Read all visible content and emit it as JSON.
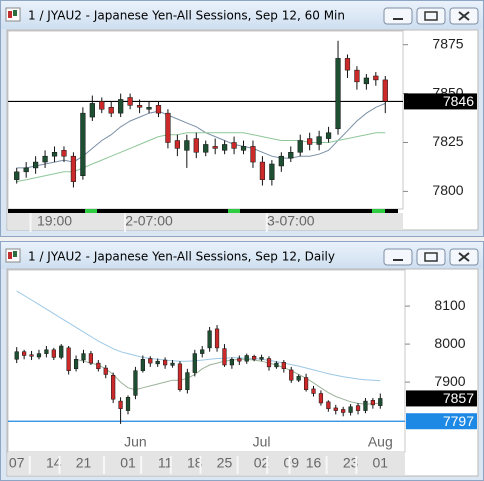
{
  "chart_data": [
    {
      "type": "candlestick",
      "title": "1 / JYAU2 - Japanese Yen-All Sessions, Sep 12, 60 Min",
      "categories": [
        null,
        null,
        null,
        null,
        "19:00",
        null,
        null,
        null,
        null,
        null,
        null,
        null,
        null,
        null,
        "2-07:00",
        null,
        null,
        null,
        null,
        null,
        null,
        null,
        null,
        null,
        null,
        null,
        null,
        null,
        null,
        "3-07:00",
        null,
        null,
        null,
        null,
        null,
        null,
        null,
        null,
        null,
        null
      ],
      "open": [
        7806,
        7810,
        7812,
        7815,
        7818,
        7821,
        7818,
        7808,
        7838,
        7846,
        7843,
        7840,
        7848,
        7844,
        7842,
        7844,
        7840,
        7826,
        7821,
        7827,
        7820,
        7823,
        7821,
        7825,
        7821,
        7823,
        7815,
        7806,
        7813,
        7817,
        7820,
        7827,
        7824,
        7827,
        7832,
        7868,
        7862,
        7855,
        7859,
        7857
      ],
      "high": [
        7812,
        7815,
        7818,
        7821,
        7823,
        7823,
        7820,
        7843,
        7849,
        7848,
        7846,
        7850,
        7850,
        7847,
        7846,
        7846,
        7842,
        7829,
        7829,
        7830,
        7826,
        7827,
        7826,
        7828,
        7826,
        7826,
        7818,
        7816,
        7820,
        7823,
        7829,
        7830,
        7831,
        7833,
        7877,
        7870,
        7864,
        7860,
        7861,
        7859
      ],
      "low": [
        7804,
        7807,
        7809,
        7812,
        7815,
        7815,
        7802,
        7806,
        7836,
        7840,
        7838,
        7838,
        7842,
        7840,
        7840,
        7838,
        7822,
        7818,
        7812,
        7817,
        7818,
        7819,
        7819,
        7819,
        7819,
        7812,
        7803,
        7803,
        7810,
        7815,
        7818,
        7821,
        7821,
        7825,
        7829,
        7858,
        7852,
        7852,
        7854,
        7840
      ],
      "close": [
        7810,
        7812,
        7815,
        7818,
        7820,
        7818,
        7805,
        7840,
        7845,
        7842,
        7840,
        7847,
        7844,
        7843,
        7843,
        7840,
        7825,
        7822,
        7826,
        7820,
        7824,
        7822,
        7824,
        7822,
        7823,
        7815,
        7806,
        7814,
        7818,
        7820,
        7826,
        7824,
        7828,
        7830,
        7868,
        7862,
        7856,
        7858,
        7857,
        7846
      ],
      "up_color": "#1f4f33",
      "down_color": "#cc2a2a",
      "series": [
        {
          "color": "#7a8fa6",
          "values": [
            7812,
            7812,
            7813,
            7814,
            7815,
            7816,
            7815,
            7818,
            7822,
            7826,
            7829,
            7833,
            7836,
            7838,
            7840,
            7841,
            7839,
            7837,
            7835,
            7833,
            7830,
            7828,
            7826,
            7824,
            7823,
            7822,
            7820,
            7818,
            7817,
            7817,
            7818,
            7818,
            7819,
            7821,
            7826,
            7831,
            7836,
            7840,
            7843,
            7845
          ]
        },
        {
          "color": "#8fc79a",
          "values": [
            7805,
            7806,
            7807,
            7808,
            7809,
            7810,
            7810,
            7812,
            7814,
            7816,
            7818,
            7820,
            7822,
            7824,
            7826,
            7828,
            7829,
            7829,
            7830,
            7830,
            7830,
            7830,
            7830,
            7830,
            7830,
            7829,
            7828,
            7827,
            7826,
            7826,
            7826,
            7825,
            7825,
            7825,
            7826,
            7827,
            7828,
            7829,
            7830,
            7830
          ]
        }
      ],
      "ylim": [
        7791,
        7882
      ],
      "yticks": [
        7800,
        7825,
        7850,
        7875
      ],
      "price_lines": [
        {
          "value": 7846,
          "color": "#000000",
          "line": true
        }
      ]
    },
    {
      "type": "candlestick",
      "title": "1 / JYAU2 - Japanese Yen-All Sessions, Sep 12, Daily",
      "categories": [
        "07",
        null,
        null,
        null,
        null,
        "14",
        null,
        null,
        null,
        "21",
        null,
        null,
        null,
        null,
        null,
        "01",
        null,
        null,
        null,
        null,
        "11",
        null,
        null,
        null,
        "18",
        null,
        null,
        null,
        "25",
        null,
        null,
        null,
        null,
        "02",
        null,
        null,
        null,
        "09",
        null,
        null,
        "16",
        null,
        null,
        null,
        null,
        "23",
        null,
        null,
        null,
        "01"
      ],
      "months": [
        null,
        null,
        null,
        null,
        null,
        null,
        null,
        null,
        null,
        null,
        null,
        null,
        null,
        null,
        null,
        null,
        "Jun",
        null,
        null,
        null,
        null,
        null,
        null,
        null,
        null,
        null,
        null,
        null,
        null,
        null,
        null,
        null,
        null,
        "Jul",
        null,
        null,
        null,
        null,
        null,
        null,
        null,
        null,
        null,
        null,
        null,
        null,
        null,
        null,
        null,
        "Aug"
      ],
      "open": [
        7960,
        7980,
        7972,
        7966,
        7975,
        7985,
        7965,
        7990,
        7935,
        7958,
        7975,
        7950,
        7937,
        7918,
        7850,
        7825,
        7865,
        7930,
        7962,
        7948,
        7958,
        7944,
        7948,
        7880,
        7925,
        7975,
        7990,
        8040,
        7988,
        7945,
        7962,
        7955,
        7968,
        7960,
        7962,
        7940,
        7952,
        7932,
        7905,
        7912,
        7882,
        7870,
        7848,
        7832,
        7828,
        7820,
        7838,
        7825,
        7852,
        7838
      ],
      "high": [
        7992,
        7985,
        7982,
        7985,
        7995,
        7990,
        8000,
        7995,
        7970,
        7985,
        7982,
        7958,
        7945,
        7925,
        7860,
        7865,
        7940,
        7970,
        7968,
        7962,
        7965,
        7958,
        7955,
        7935,
        7985,
        7995,
        8045,
        8050,
        8000,
        7965,
        7970,
        7975,
        7972,
        7972,
        7968,
        7955,
        7958,
        7940,
        7920,
        7922,
        7890,
        7878,
        7852,
        7840,
        7835,
        7842,
        7845,
        7858,
        7858,
        7870
      ],
      "low": [
        7950,
        7960,
        7958,
        7960,
        7965,
        7958,
        7960,
        7920,
        7928,
        7950,
        7945,
        7928,
        7910,
        7845,
        7790,
        7815,
        7855,
        7925,
        7940,
        7940,
        7935,
        7938,
        7875,
        7870,
        7915,
        7965,
        7980,
        7980,
        7940,
        7935,
        7945,
        7948,
        7955,
        7955,
        7930,
        7935,
        7925,
        7898,
        7900,
        7875,
        7862,
        7838,
        7822,
        7815,
        7810,
        7812,
        7815,
        7818,
        7830,
        7830
      ],
      "close": [
        7980,
        7970,
        7968,
        7975,
        7985,
        7965,
        7995,
        7930,
        7960,
        7975,
        7950,
        7935,
        7920,
        7855,
        7830,
        7860,
        7930,
        7960,
        7950,
        7955,
        7945,
        7950,
        7880,
        7925,
        7975,
        7985,
        8035,
        7990,
        7945,
        7960,
        7955,
        7970,
        7960,
        7965,
        7940,
        7950,
        7935,
        7905,
        7915,
        7880,
        7870,
        7845,
        7830,
        7825,
        7820,
        7835,
        7825,
        7850,
        7840,
        7857
      ],
      "up_color": "#1f4f33",
      "down_color": "#cc2a2a",
      "series": [
        {
          "color": "#9cc8e6",
          "values": [
            8140,
            8128,
            8116,
            8104,
            8092,
            8080,
            8068,
            8056,
            8044,
            8032,
            8020,
            8008,
            7998,
            7988,
            7980,
            7975,
            7970,
            7965,
            7962,
            7960,
            7958,
            7956,
            7955,
            7955,
            7956,
            7958,
            7960,
            7962,
            7963,
            7964,
            7964,
            7963,
            7962,
            7960,
            7957,
            7954,
            7950,
            7946,
            7942,
            7937,
            7932,
            7927,
            7922,
            7918,
            7914,
            7911,
            7908,
            7906,
            7905,
            7904
          ]
        },
        {
          "color": "#9db39a",
          "values": [
            null,
            null,
            null,
            null,
            null,
            null,
            null,
            null,
            7960,
            7955,
            7950,
            7945,
            7935,
            7920,
            7900,
            7885,
            7880,
            7885,
            7890,
            7895,
            7900,
            7905,
            7905,
            7910,
            7920,
            7935,
            7945,
            7950,
            7955,
            7958,
            7960,
            7960,
            7958,
            7955,
            7950,
            7945,
            7938,
            7930,
            7920,
            7910,
            7898,
            7885,
            7872,
            7862,
            7855,
            7848,
            7844,
            7842,
            7843,
            7845
          ]
        }
      ],
      "ylim": [
        7716,
        8195
      ],
      "yticks": [
        7900,
        8000,
        8100
      ],
      "price_lines": [
        {
          "value": 7857,
          "color": "#000000",
          "line": false
        },
        {
          "value": 7797,
          "color": "#1e88e5",
          "line": true
        }
      ]
    }
  ]
}
